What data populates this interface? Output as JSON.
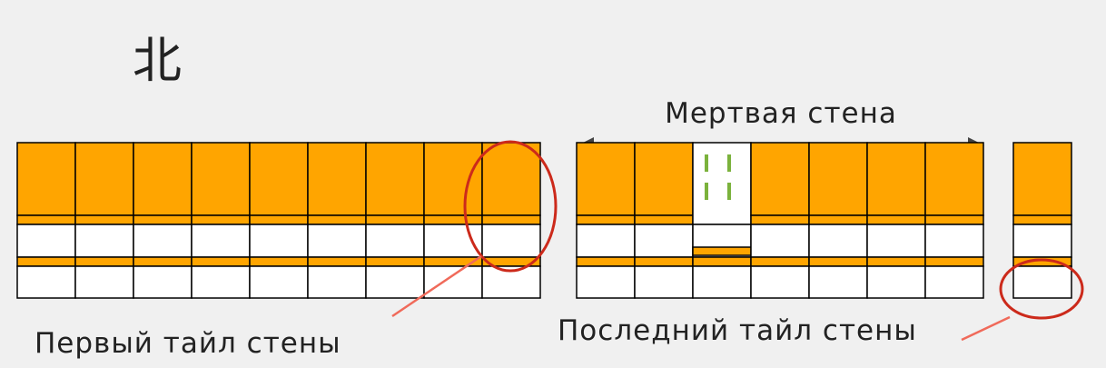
{
  "title": "北",
  "dead_wall_label": "Мертвая стена",
  "first_tile_label": "Первый тайл стены",
  "last_tile_label": "Последний тайл стены",
  "colors": {
    "background": "#f0f0f0",
    "tile_back": "#ffa500",
    "tile_face": "#ffffff",
    "outline": "#000000",
    "highlight": "#cc2a1b",
    "pointer": "#f06a5a",
    "indicator": "#7bb23c",
    "arrow": "#444444"
  },
  "wall": {
    "left_group_stacks": 9,
    "right_group_stacks": 7,
    "separate_stacks": 1,
    "opened_stack_position": 3,
    "opened_stack_symbol": "2 × 2 green dashes"
  },
  "icons": [
    "double-arrow-icon",
    "highlight-ellipse-icon",
    "pointer-line-icon"
  ]
}
